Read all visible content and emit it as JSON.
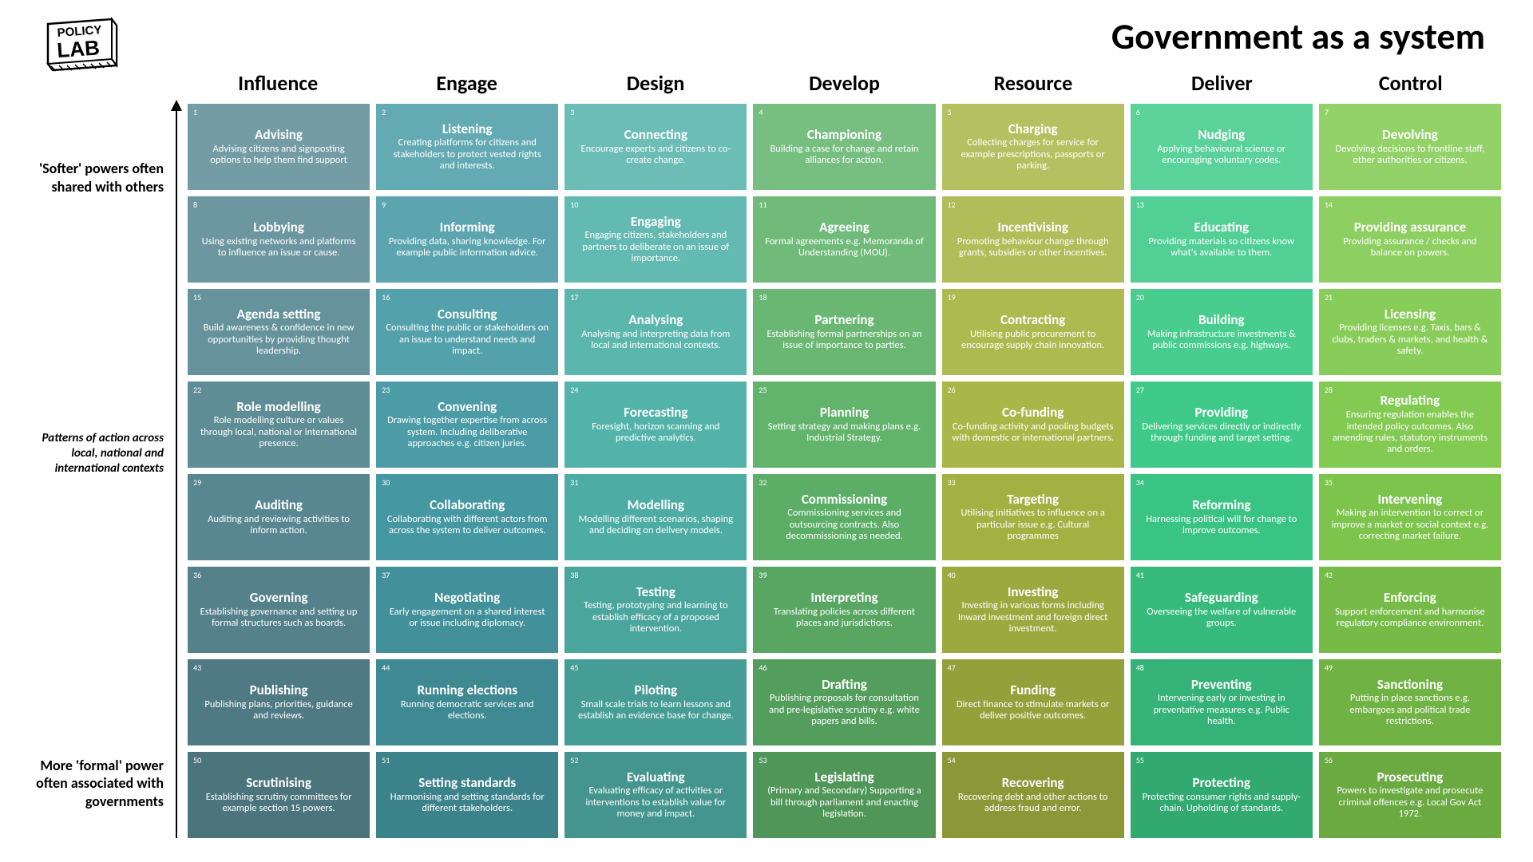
{
  "main_title": "Government as a system",
  "logo_text_top": "POLICY",
  "logo_text_bottom": "LAB",
  "columns": [
    "Influence",
    "Engage",
    "Design",
    "Develop",
    "Resource",
    "Deliver",
    "Control"
  ],
  "column_colors": [
    "#5a8a94",
    "#479aa5",
    "#4fb1a8",
    "#5eb269",
    "#a6b543",
    "#3bc986",
    "#7fc94d"
  ],
  "side_top": "'Softer' powers often shared with others",
  "side_mid": "Patterns of action across local, national and international contexts",
  "side_bot": "More 'formal' power often associated with governments",
  "grid_rows": 8,
  "grid_cols": 7,
  "title_fontsize": 46,
  "col_header_fontsize": 26,
  "cell_title_fontsize": 17,
  "cell_desc_fontsize": 12.5,
  "background_color": "#ffffff",
  "text_color": "#ffffff",
  "cells": [
    {
      "n": 1,
      "t": "Advising",
      "d": "Advising citizens and signposting options to help them find support"
    },
    {
      "n": 2,
      "t": "Listening",
      "d": "Creating platforms for citizens and stakeholders to protect vested rights and interests."
    },
    {
      "n": 3,
      "t": "Connecting",
      "d": "Encourage experts and citizens to co-create change."
    },
    {
      "n": 4,
      "t": "Championing",
      "d": "Building a case for change and retain alliances for action."
    },
    {
      "n": 5,
      "t": "Charging",
      "d": "Collecting charges for service for example prescriptions, passports or parking."
    },
    {
      "n": 6,
      "t": "Nudging",
      "d": "Applying behavioural science or encouraging voluntary codes."
    },
    {
      "n": 7,
      "t": "Devolving",
      "d": "Devolving decisions to frontline staff, other authorities or citizens."
    },
    {
      "n": 8,
      "t": "Lobbying",
      "d": "Using existing networks and platforms to influence an issue or cause."
    },
    {
      "n": 9,
      "t": "Informing",
      "d": "Providing data, sharing knowledge. For example public information advice."
    },
    {
      "n": 10,
      "t": "Engaging",
      "d": "Engaging citizens, stakeholders and partners to deliberate on an issue of importance."
    },
    {
      "n": 11,
      "t": "Agreeing",
      "d": "Formal agreements e.g. Memoranda of Understanding (MOU)."
    },
    {
      "n": 12,
      "t": "Incentivising",
      "d": "Promoting behaviour change through grants, subsidies or other incentives."
    },
    {
      "n": 13,
      "t": "Educating",
      "d": "Providing materials so citizens know what's available to them."
    },
    {
      "n": 14,
      "t": "Providing assurance",
      "d": "Providing assurance / checks and balance on powers."
    },
    {
      "n": 15,
      "t": "Agenda setting",
      "d": "Build awareness & confidence in new opportunities by providing thought leadership."
    },
    {
      "n": 16,
      "t": "Consulting",
      "d": "Consulting the public or stakeholders on an issue to understand needs and impact."
    },
    {
      "n": 17,
      "t": "Analysing",
      "d": "Analysing and interpreting data from local and international contexts."
    },
    {
      "n": 18,
      "t": "Partnering",
      "d": "Establishing formal partnerships on an issue of importance to parties."
    },
    {
      "n": 19,
      "t": "Contracting",
      "d": "Utilising public procurement to encourage supply chain innovation."
    },
    {
      "n": 20,
      "t": "Building",
      "d": "Making infrastructure investments & public commissions e.g. highways."
    },
    {
      "n": 21,
      "t": "Licensing",
      "d": "Providing licenses e.g. Taxis, bars & clubs, traders & markets, and health & safety."
    },
    {
      "n": 22,
      "t": "Role modelling",
      "d": "Role modelling culture or values through local, national or international presence."
    },
    {
      "n": 23,
      "t": "Convening",
      "d": "Drawing together expertise from across system. Including deliberative approaches e.g. citizen juries."
    },
    {
      "n": 24,
      "t": "Forecasting",
      "d": "Foresight, horizon scanning and predictive analytics."
    },
    {
      "n": 25,
      "t": "Planning",
      "d": "Setting strategy and making plans e.g. Industrial Strategy."
    },
    {
      "n": 26,
      "t": "Co-funding",
      "d": "Co-funding activity and pooling budgets with domestic or international partners."
    },
    {
      "n": 27,
      "t": "Providing",
      "d": "Delivering services directly or indirectly through funding and target setting."
    },
    {
      "n": 28,
      "t": "Regulating",
      "d": "Ensuring regulation enables the intended policy outcomes. Also amending rules, statutory instruments  and orders."
    },
    {
      "n": 29,
      "t": "Auditing",
      "d": "Auditing and reviewing activities to inform action."
    },
    {
      "n": 30,
      "t": "Collaborating",
      "d": "Collaborating with different actors from across the system to deliver outcomes."
    },
    {
      "n": 31,
      "t": "Modelling",
      "d": "Modelling different scenarios, shaping and deciding on delivery models."
    },
    {
      "n": 32,
      "t": "Commissioning",
      "d": "Commissioning services and outsourcing contracts. Also decommissioning as needed."
    },
    {
      "n": 33,
      "t": "Targeting",
      "d": "Utilising initiatives to influence on a particular issue e.g. Cultural programmes"
    },
    {
      "n": 34,
      "t": "Reforming",
      "d": "Harnessing political will for change to improve outcomes."
    },
    {
      "n": 35,
      "t": "Intervening",
      "d": "Making an intervention to correct or improve a market or social context e.g. correcting market failure."
    },
    {
      "n": 36,
      "t": "Governing",
      "d": "Establishing governance and setting up formal structures such as boards."
    },
    {
      "n": 37,
      "t": "Negotiating",
      "d": "Early engagement on a shared interest or issue including diplomacy."
    },
    {
      "n": 38,
      "t": "Testing",
      "d": "Testing, prototyping and learning to establish efficacy of a proposed intervention."
    },
    {
      "n": 39,
      "t": "Interpreting",
      "d": "Translating policies across different places and jurisdictions."
    },
    {
      "n": 40,
      "t": "Investing",
      "d": "Investing in various forms including Inward investment and foreign direct investment."
    },
    {
      "n": 41,
      "t": "Safeguarding",
      "d": "Overseeing the welfare of vulnerable groups."
    },
    {
      "n": 42,
      "t": "Enforcing",
      "d": "Support enforcement and harmonise regulatory compliance environment."
    },
    {
      "n": 43,
      "t": "Publishing",
      "d": "Publishing plans, priorities, guidance and reviews."
    },
    {
      "n": 44,
      "t": "Running elections",
      "d": "Running democratic services and elections."
    },
    {
      "n": 45,
      "t": "Piloting",
      "d": "Small scale trials to learn lessons and establish an evidence base for change."
    },
    {
      "n": 46,
      "t": "Drafting",
      "d": "Publishing proposals for consultation and pre-legislative scrutiny e.g. white papers and bills."
    },
    {
      "n": 47,
      "t": "Funding",
      "d": "Direct finance to stimulate markets or deliver positive outcomes."
    },
    {
      "n": 48,
      "t": "Preventing",
      "d": "Intervening early or investing in preventative measures e.g. Public health."
    },
    {
      "n": 49,
      "t": "Sanctioning",
      "d": "Putting in place sanctions  e.g. embargoes and political trade restrictions."
    },
    {
      "n": 50,
      "t": "Scrutinising",
      "d": "Establishing scrutiny committees for example section 15 powers."
    },
    {
      "n": 51,
      "t": "Setting standards",
      "d": "Harmonising and setting standards for different stakeholders."
    },
    {
      "n": 52,
      "t": "Evaluating",
      "d": "Evaluating efficacy of activities or interventions to establish value for money and impact."
    },
    {
      "n": 53,
      "t": "Legislating",
      "d": "(Primary and  Secondary) Supporting a bill through parliament  and enacting legislation."
    },
    {
      "n": 54,
      "t": "Recovering",
      "d": "Recovering debt and other actions to address fraud and error."
    },
    {
      "n": 55,
      "t": "Protecting",
      "d": "Protecting consumer rights and supply-chain. Upholding of standards."
    },
    {
      "n": 56,
      "t": "Prosecuting",
      "d": "Powers to investigate and prosecute criminal offences e.g. Local Gov Act 1972."
    }
  ]
}
